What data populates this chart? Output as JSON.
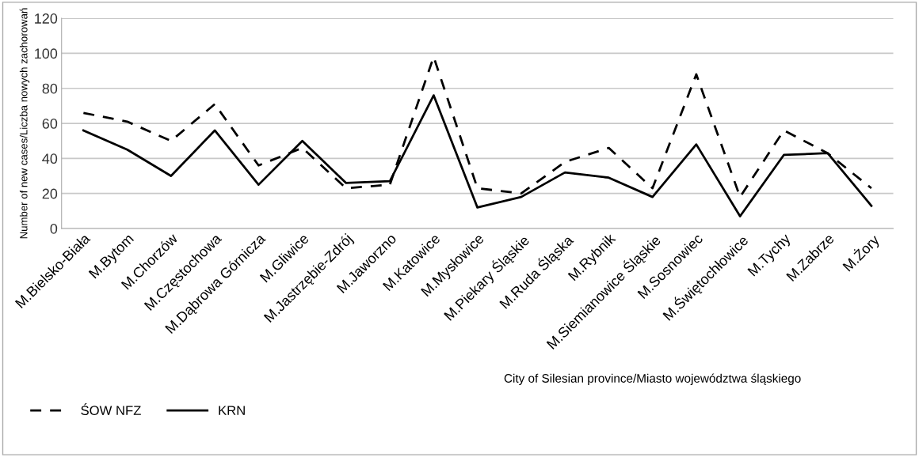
{
  "chart_data": {
    "type": "line",
    "ylabel": "Number of new cases/Liczba nowych zachorowań",
    "xlabel": "City of Silesian province/Miasto województwa śląskiego",
    "categories": [
      "M.Bielsko-Biała",
      "M.Bytom",
      "M.Chorzów",
      "M.Częstochowa",
      "M.Dąbrowa Górnicza",
      "M.Gliwice",
      "M.Jastrzębie-Zdrój",
      "M.Jaworzno",
      "M.Katowice",
      "M.Mysłowice",
      "M.Piekary Śląskie",
      "M.Ruda Śląska",
      "M.Rybnik",
      "M.Siemianowice Śląskie",
      "M.Sosnowiec",
      "M.Świętochłowice",
      "M.Tychy",
      "M.Zabrze",
      "M.Żory"
    ],
    "series": [
      {
        "name": "ŚOW NFZ",
        "color": "#000000",
        "line_style": "dashed",
        "values": [
          66,
          61,
          50,
          71,
          36,
          46,
          23,
          25,
          98,
          23,
          20,
          38,
          46,
          23,
          88,
          18,
          56,
          43,
          23
        ]
      },
      {
        "name": "KRN",
        "color": "#000000",
        "line_style": "solid",
        "values": [
          56,
          45,
          30,
          56,
          25,
          50,
          26,
          27,
          76,
          12,
          18,
          32,
          29,
          18,
          48,
          7,
          42,
          43,
          13
        ]
      }
    ],
    "ylim": [
      0,
      120
    ],
    "yticks": [
      0,
      20,
      40,
      60,
      80,
      100,
      120
    ],
    "grid": "y",
    "legend": "bottom left",
    "marker": "none"
  }
}
